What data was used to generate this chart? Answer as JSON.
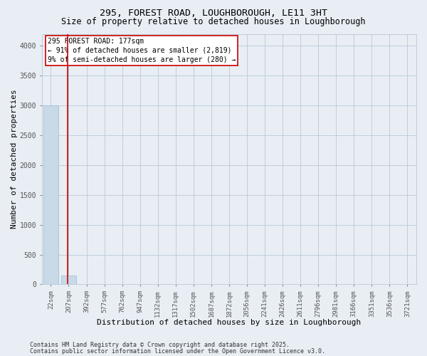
{
  "title1": "295, FOREST ROAD, LOUGHBOROUGH, LE11 3HT",
  "title2": "Size of property relative to detached houses in Loughborough",
  "xlabel": "Distribution of detached houses by size in Loughborough",
  "ylabel": "Number of detached properties",
  "categories": [
    "22sqm",
    "207sqm",
    "392sqm",
    "577sqm",
    "762sqm",
    "947sqm",
    "1132sqm",
    "1317sqm",
    "1502sqm",
    "1687sqm",
    "1872sqm",
    "2056sqm",
    "2241sqm",
    "2426sqm",
    "2611sqm",
    "2796sqm",
    "2981sqm",
    "3166sqm",
    "3351sqm",
    "3536sqm",
    "3721sqm"
  ],
  "bar_heights": [
    3000,
    150,
    0,
    0,
    0,
    0,
    0,
    0,
    0,
    0,
    0,
    0,
    0,
    0,
    0,
    0,
    0,
    0,
    0,
    0,
    0
  ],
  "bar_color": "#c8d9e8",
  "bar_edge_color": "#a0b8cc",
  "annotation_text_line1": "295 FOREST ROAD: 177sqm",
  "annotation_text_line2": "← 91% of detached houses are smaller (2,819)",
  "annotation_text_line3": "9% of semi-detached houses are larger (280) →",
  "red_line_color": "#cc0000",
  "annotation_box_edge_color": "#cc0000",
  "ylim": [
    0,
    4200
  ],
  "yticks": [
    0,
    500,
    1000,
    1500,
    2000,
    2500,
    3000,
    3500,
    4000
  ],
  "footer1": "Contains HM Land Registry data © Crown copyright and database right 2025.",
  "footer2": "Contains public sector information licensed under the Open Government Licence v3.0.",
  "bg_color": "#e8eef4",
  "plot_bg_color": "#e8eef4",
  "grid_color": "#b8c8d8",
  "title_fontsize": 9.5,
  "subtitle_fontsize": 8.5,
  "axis_label_fontsize": 8,
  "tick_fontsize": 6.5,
  "footer_fontsize": 6,
  "annotation_fontsize": 7
}
